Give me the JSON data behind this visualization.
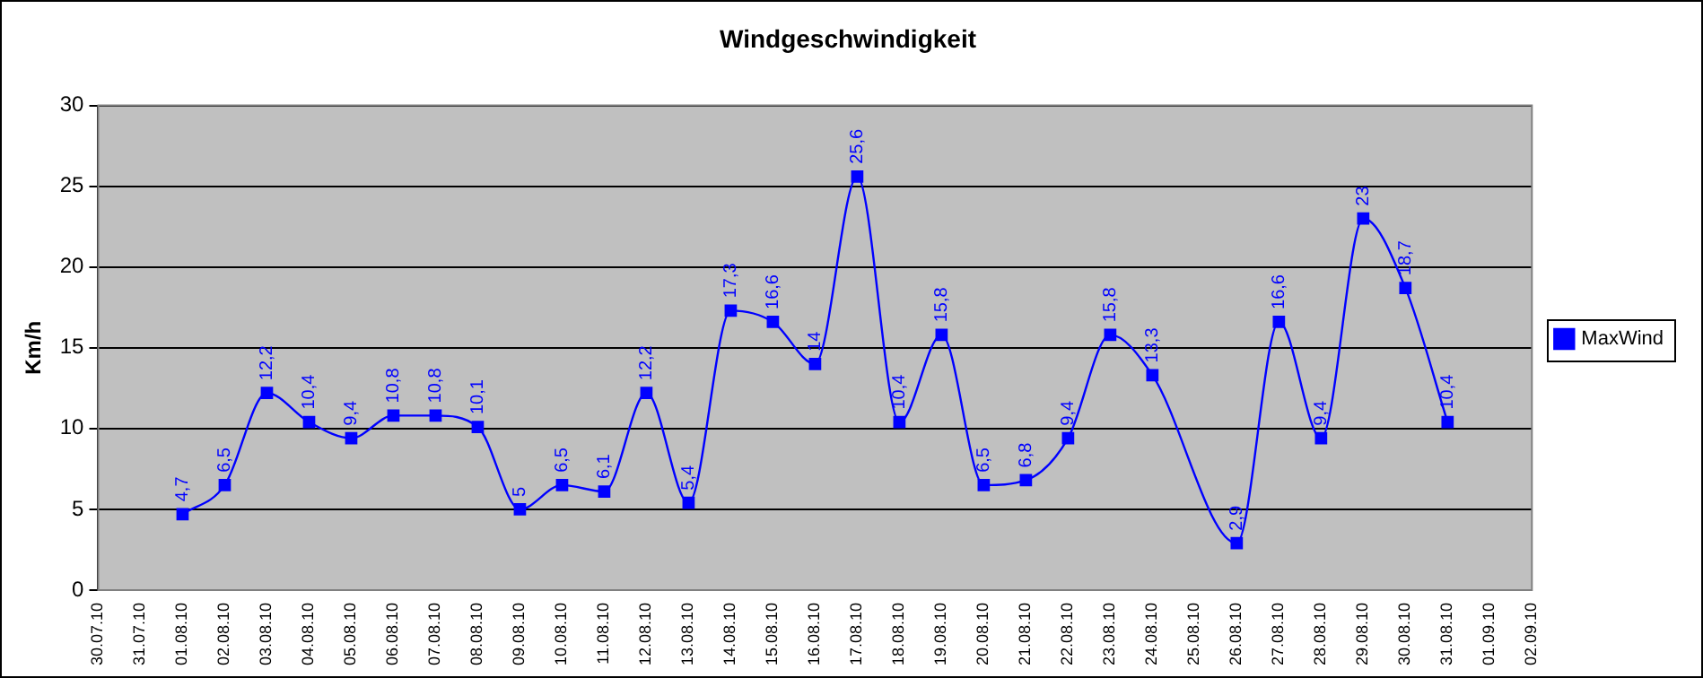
{
  "chart_data": {
    "type": "line",
    "title": "Windgeschwindigkeit",
    "ylabel": "Km/h",
    "categories": [
      "30.07.10",
      "31.07.10",
      "01.08.10",
      "02.08.10",
      "03.08.10",
      "04.08.10",
      "05.08.10",
      "06.08.10",
      "07.08.10",
      "08.08.10",
      "09.08.10",
      "10.08.10",
      "11.08.10",
      "12.08.10",
      "13.08.10",
      "14.08.10",
      "15.08.10",
      "16.08.10",
      "17.08.10",
      "18.08.10",
      "19.08.10",
      "20.08.10",
      "21.08.10",
      "22.08.10",
      "23.08.10",
      "24.08.10",
      "25.08.10",
      "26.08.10",
      "27.08.10",
      "28.08.10",
      "29.08.10",
      "30.08.10",
      "31.08.10",
      "01.09.10",
      "02.09.10"
    ],
    "series": [
      {
        "name": "MaxWind",
        "color": "#0000ff",
        "values": [
          null,
          null,
          4.7,
          6.5,
          12.2,
          10.4,
          9.4,
          10.8,
          10.8,
          10.1,
          5,
          6.5,
          6.1,
          12.2,
          5.4,
          17.3,
          16.6,
          14,
          25.6,
          10.4,
          15.8,
          6.5,
          6.8,
          9.4,
          15.8,
          13.3,
          null,
          2.9,
          16.6,
          9.4,
          23,
          18.7,
          10.4,
          null,
          null
        ],
        "value_labels": [
          null,
          null,
          "4,7",
          "6,5",
          "12,2",
          "10,4",
          "9,4",
          "10,8",
          "10,8",
          "10,1",
          "5",
          "6,5",
          "6,1",
          "12,2",
          "5,4",
          "17,3",
          "16,6",
          "14",
          "25,6",
          "10,4",
          "15,8",
          "6,5",
          "6,8",
          "9,4",
          "15,8",
          "13,3",
          null,
          "2,9",
          "16,6",
          "9,4",
          "23",
          "18,7",
          "10,4",
          null,
          null
        ]
      }
    ],
    "ylim": [
      0,
      30
    ],
    "yticks": [
      0,
      5,
      10,
      15,
      20,
      25,
      30
    ],
    "grid": "y",
    "legend": "right",
    "marker": "square",
    "line_style": "solid"
  }
}
